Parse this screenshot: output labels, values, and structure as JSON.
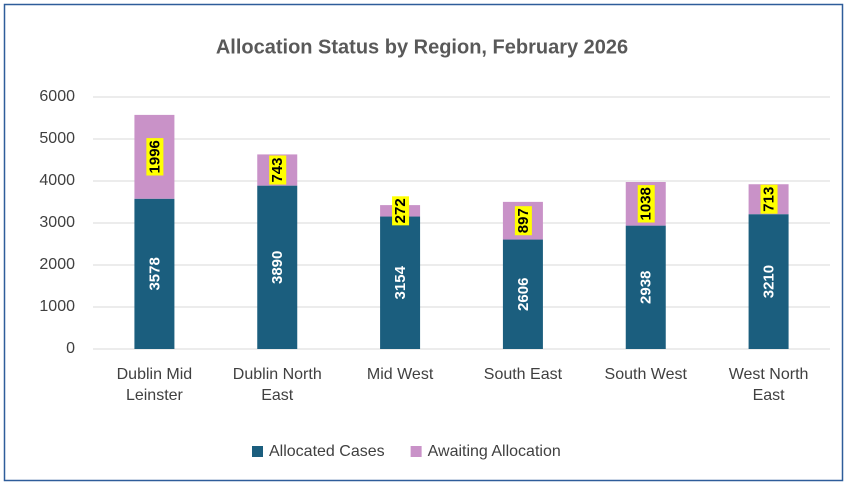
{
  "chart_data": {
    "type": "stacked_bar",
    "title": "Allocation Status by Region, February 2026",
    "categories": [
      "Dublin Mid Leinster",
      "Dublin North East",
      "Mid West",
      "South East",
      "South West",
      "West North East"
    ],
    "series": [
      {
        "name": "Allocated Cases",
        "color": "#1b5e7e",
        "values": [
          3578,
          3890,
          3154,
          2606,
          2938,
          3210
        ]
      },
      {
        "name": "Awaiting Allocation",
        "color": "#c992c8",
        "values": [
          1996,
          743,
          272,
          897,
          1038,
          713
        ]
      }
    ],
    "ylim": [
      0,
      6000
    ],
    "yticks": [
      0,
      1000,
      2000,
      3000,
      4000,
      5000,
      6000
    ],
    "grid": true,
    "legend": "bottom"
  }
}
